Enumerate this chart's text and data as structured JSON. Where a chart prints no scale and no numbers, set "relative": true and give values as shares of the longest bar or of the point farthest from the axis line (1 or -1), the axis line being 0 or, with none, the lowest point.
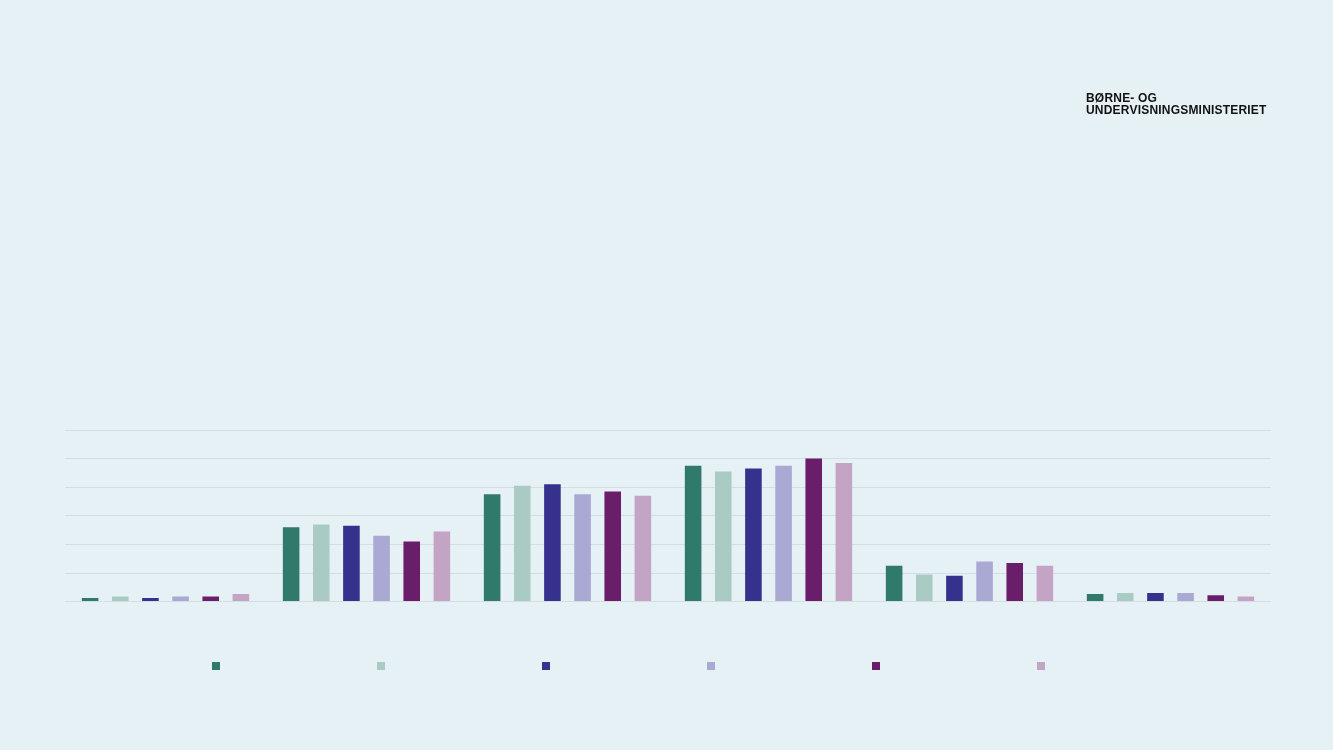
{
  "chart_data": {
    "type": "bar",
    "relative": true,
    "grid": "y",
    "categories": [
      null,
      null,
      null,
      null,
      null,
      null
    ],
    "series": [
      {
        "color": "#2f7a6a",
        "values": [
          0.026,
          0.52,
          0.75,
          0.95,
          0.25,
          0.053
        ]
      },
      {
        "color": "#a9cbc4",
        "values": [
          0.035,
          0.54,
          0.81,
          0.91,
          0.19,
          0.061
        ]
      },
      {
        "color": "#35318d",
        "values": [
          0.026,
          0.53,
          0.82,
          0.93,
          0.18,
          0.061
        ]
      },
      {
        "color": "#aaa9d4",
        "values": [
          0.035,
          0.46,
          0.75,
          0.95,
          0.28,
          0.061
        ]
      },
      {
        "color": "#6a1e6a",
        "values": [
          0.035,
          0.42,
          0.77,
          1,
          0.27,
          0.044
        ]
      },
      {
        "color": "#c4a4c4",
        "values": [
          0.053,
          0.49,
          0.74,
          0.97,
          0.25,
          0.035
        ]
      }
    ],
    "annotations": [
      "BØRNE- OG UNDERVISNINGSMINISTERIET"
    ]
  }
}
